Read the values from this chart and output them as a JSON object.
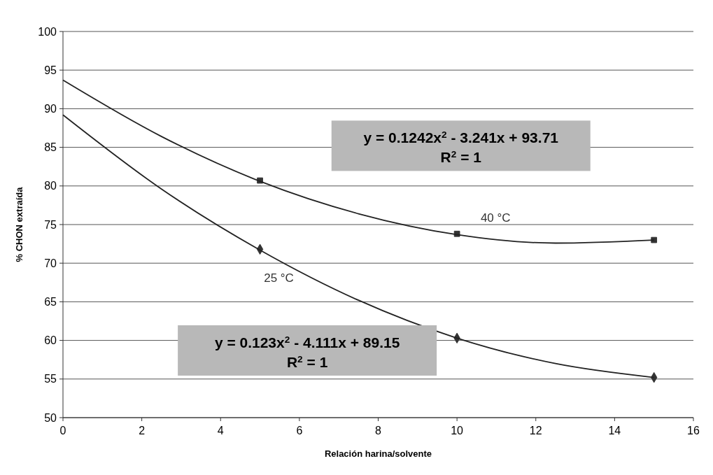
{
  "chart_data": {
    "type": "scatter",
    "xlabel": "Relación harina/solvente",
    "ylabel": "% CHON extraída",
    "xlim": [
      0,
      16
    ],
    "xticks": [
      0,
      2,
      4,
      6,
      8,
      10,
      12,
      14,
      16
    ],
    "ylim": [
      50,
      100
    ],
    "yticks": [
      50,
      55,
      60,
      65,
      70,
      75,
      80,
      85,
      90,
      95,
      100
    ],
    "grid": "y",
    "legend": false,
    "series": [
      {
        "name": "40 °C",
        "marker": "square",
        "color": "#333333",
        "x": [
          5,
          10,
          15
        ],
        "values": [
          80.7,
          73.8,
          73.0
        ]
      },
      {
        "name": "25 °C",
        "marker": "diamond",
        "color": "#333333",
        "x": [
          5,
          10,
          15
        ],
        "values": [
          71.8,
          60.3,
          55.2
        ]
      },
      {
        "type": "line",
        "marker": "none",
        "color": "#222222",
        "x": [
          0,
          2.5,
          5,
          7.5,
          10,
          12.5,
          15
        ],
        "values": [
          93.7,
          86.4,
          80.6,
          76.4,
          73.7,
          72.6,
          73.0
        ]
      },
      {
        "type": "line",
        "marker": "none",
        "color": "#222222",
        "x": [
          0,
          2.5,
          5,
          7.5,
          10,
          12.5,
          15
        ],
        "values": [
          89.2,
          79.6,
          71.7,
          65.2,
          60.3,
          57.0,
          55.2
        ]
      }
    ],
    "annotations": [
      "y = 0.1242x$^{2}$ - 3.241x + 93.71\nR$^{2}$ = 1",
      "y = 0.123x$^{2}$ - 4.111x + 89.15\nR$^{2}$ = 1"
    ]
  }
}
